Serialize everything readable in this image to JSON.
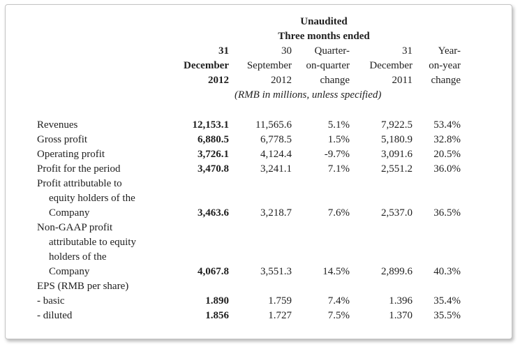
{
  "header": {
    "unaudited": "Unaudited",
    "three_months": "Three months ended",
    "col1": [
      "31",
      "December",
      "2012"
    ],
    "col2": [
      "30",
      "September",
      "2012"
    ],
    "col3": [
      "Quarter-",
      "on-quarter",
      "change"
    ],
    "col4": [
      "31",
      "December",
      "2011"
    ],
    "col5": [
      "Year-",
      "on-year",
      "change"
    ],
    "units": "(RMB in millions, unless specified)"
  },
  "rows": [
    {
      "label": [
        "Revenues"
      ],
      "values": [
        "12,153.1",
        "11,565.6",
        "5.1%",
        "7,922.5",
        "53.4%"
      ]
    },
    {
      "label": [
        "Gross profit"
      ],
      "values": [
        "6,880.5",
        "6,778.5",
        "1.5%",
        "5,180.9",
        "32.8%"
      ]
    },
    {
      "label": [
        "Operating profit"
      ],
      "values": [
        "3,726.1",
        "4,124.4",
        "-9.7%",
        "3,091.6",
        "20.5%"
      ]
    },
    {
      "label": [
        "Profit for the period"
      ],
      "values": [
        "3,470.8",
        "3,241.1",
        "7.1%",
        "2,551.2",
        "36.0%"
      ]
    },
    {
      "label": [
        "Profit attributable to",
        "equity holders of the",
        "Company"
      ],
      "values": [
        "3,463.6",
        "3,218.7",
        "7.6%",
        "2,537.0",
        "36.5%"
      ]
    },
    {
      "label": [
        "Non-GAAP profit",
        "attributable to equity",
        "holders of the",
        "Company"
      ],
      "values": [
        "4,067.8",
        "3,551.3",
        "14.5%",
        "2,899.6",
        "40.3%"
      ]
    },
    {
      "label": [
        "EPS (RMB per share)"
      ],
      "values": []
    },
    {
      "label": [
        "- basic"
      ],
      "values": [
        "1.890",
        "1.759",
        "7.4%",
        "1.396",
        "35.4%"
      ]
    },
    {
      "label": [
        "- diluted"
      ],
      "values": [
        "1.856",
        "1.727",
        "7.5%",
        "1.370",
        "35.5%"
      ]
    }
  ]
}
